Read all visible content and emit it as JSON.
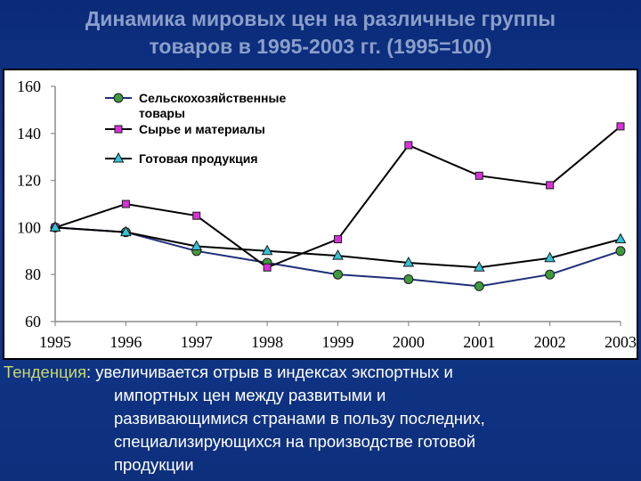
{
  "slide": {
    "title_line1": "Динамика мировых цен на различные группы",
    "title_line2": "товаров в 1995-2003 гг. (1995=100)"
  },
  "trend": {
    "label": "Тенденция",
    "line1": ": увеличивается отрыв в индексах экспортных и",
    "line2": "импортных цен между развитыми и",
    "line3": "развивающимися странами в пользу последних,",
    "line4": "специализирующихся на производстве готовой",
    "line5": "продукции"
  },
  "chart_data": {
    "type": "line",
    "x": [
      "1995",
      "1996",
      "1997",
      "1998",
      "1999",
      "2000",
      "2001",
      "2002",
      "2003"
    ],
    "ylim": [
      60,
      160
    ],
    "yticks": [
      60,
      80,
      100,
      120,
      140,
      160
    ],
    "grid": false,
    "legend_position": "top-left",
    "series": [
      {
        "name": "Сельскохозяйственные товары",
        "name_line1": "Сельскохозяйственные",
        "name_line2": "товары",
        "marker": "circle",
        "color": "#1f2f7a",
        "marker_color": "#3f9a3f",
        "values": [
          100,
          98,
          90,
          85,
          80,
          78,
          75,
          80,
          90
        ]
      },
      {
        "name": "Сырье и материалы",
        "marker": "square",
        "color": "#000000",
        "marker_color": "#d633d6",
        "values": [
          100,
          110,
          105,
          83,
          95,
          135,
          122,
          118,
          143
        ]
      },
      {
        "name": "Готовая продукция",
        "marker": "triangle",
        "color": "#000000",
        "marker_color": "#33c2d6",
        "values": [
          100,
          98,
          92,
          90,
          88,
          85,
          83,
          87,
          95
        ]
      }
    ]
  }
}
